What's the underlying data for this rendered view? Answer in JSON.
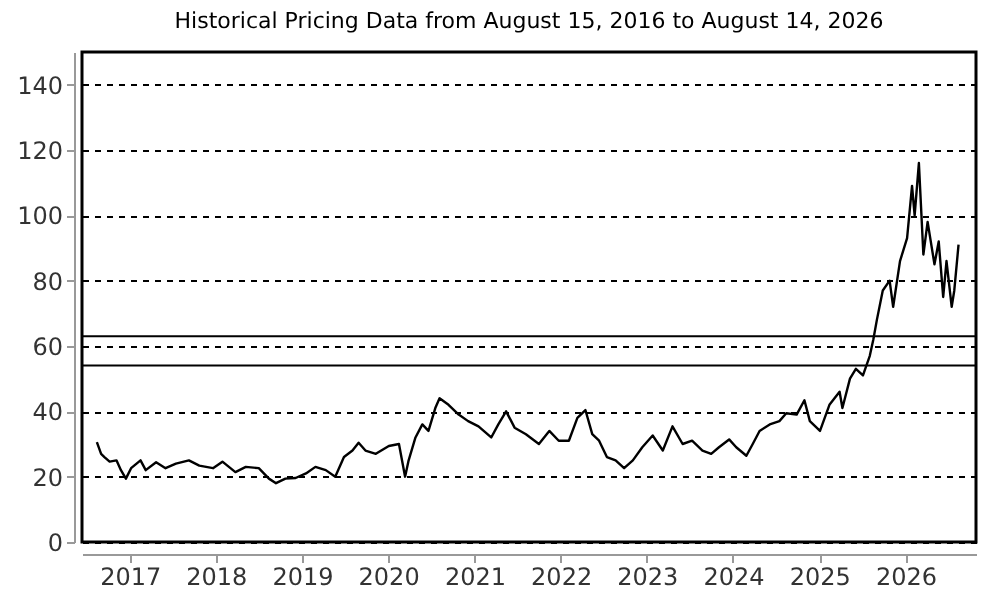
{
  "chart_data": {
    "type": "line",
    "title": "Historical Pricing Data from August 15, 2016 to August 14, 2026",
    "x": [
      "2016-08-15",
      "2016-09-02",
      "2016-09-16",
      "2016-10-08",
      "2016-11-06",
      "2016-11-25",
      "2016-12-16",
      "2017-01-07",
      "2017-02-16",
      "2017-03-10",
      "2017-04-23",
      "2017-06-02",
      "2017-07-16",
      "2017-09-09",
      "2017-10-23",
      "2017-12-20",
      "2018-01-29",
      "2018-03-25",
      "2018-05-08",
      "2018-07-02",
      "2018-08-14",
      "2018-09-13",
      "2018-10-23",
      "2018-12-05",
      "2019-01-18",
      "2019-02-27",
      "2019-04-12",
      "2019-05-22",
      "2019-06-28",
      "2019-08-03",
      "2019-08-29",
      "2019-09-27",
      "2019-11-10",
      "2020-01-04",
      "2020-02-16",
      "2020-03-13",
      "2020-03-28",
      "2020-04-26",
      "2020-05-25",
      "2020-06-20",
      "2020-07-19",
      "2020-08-06",
      "2020-09-13",
      "2020-10-26",
      "2020-12-05",
      "2021-01-18",
      "2021-03-13",
      "2021-04-12",
      "2021-05-15",
      "2021-06-20",
      "2021-08-07",
      "2021-10-01",
      "2021-11-14",
      "2021-12-24",
      "2022-02-05",
      "2022-03-13",
      "2022-04-16",
      "2022-05-15",
      "2022-06-13",
      "2022-07-16",
      "2022-08-22",
      "2022-09-27",
      "2022-11-03",
      "2022-12-13",
      "2023-01-26",
      "2023-03-10",
      "2023-04-20",
      "2023-06-02",
      "2023-07-12",
      "2023-08-25",
      "2023-10-01",
      "2023-11-03",
      "2023-12-16",
      "2024-01-15",
      "2024-02-27",
      "2024-03-25",
      "2024-04-23",
      "2024-06-05",
      "2024-07-16",
      "2024-08-14",
      "2024-09-27",
      "2024-10-30",
      "2024-11-22",
      "2025-01-04",
      "2025-02-13",
      "2025-03-28",
      "2025-04-09",
      "2025-05-11",
      "2025-06-05",
      "2025-07-05",
      "2025-08-03",
      "2025-08-18",
      "2025-09-02",
      "2025-09-27",
      "2025-10-26",
      "2025-11-10",
      "2025-12-09",
      "2026-01-08",
      "2026-01-29",
      "2026-02-09",
      "2026-02-27",
      "2026-03-18",
      "2026-04-05",
      "2026-05-04",
      "2026-05-22",
      "2026-06-10",
      "2026-06-24",
      "2026-07-16",
      "2026-07-27",
      "2026-08-14"
    ],
    "series": [
      {
        "color": "#000000",
        "values": [
          30.6,
          27,
          26,
          24.6,
          25,
          22,
          19.4,
          22.6,
          25,
          22,
          24.4,
          22.6,
          24,
          25,
          23.4,
          22.6,
          24.6,
          21.4,
          23,
          22.6,
          19.4,
          18,
          19.4,
          19.6,
          21,
          23,
          22,
          20,
          26,
          28,
          30.4,
          28,
          27,
          29.4,
          30,
          20,
          25,
          32,
          36,
          34,
          41,
          44,
          42,
          39,
          37,
          35.4,
          32,
          36,
          40,
          35,
          33,
          30,
          34,
          31,
          31,
          38,
          40.4,
          33,
          31,
          26,
          25,
          22.6,
          25,
          29,
          32.6,
          28,
          35.4,
          30,
          31,
          28,
          27,
          29,
          31.4,
          29,
          26.4,
          30,
          34,
          36,
          37,
          39.4,
          39,
          43.4,
          37,
          34,
          42,
          46,
          41,
          50,
          53,
          51,
          57,
          62,
          68,
          77,
          80,
          72,
          86,
          93,
          109,
          100,
          116,
          88,
          98,
          85,
          92,
          75,
          86,
          72,
          77,
          91
        ]
      }
    ],
    "xlim": [
      "2016-06-13",
      "2026-10-27"
    ],
    "xticks": [
      {
        "value": "2017-01-01",
        "label": "2017"
      },
      {
        "value": "2018-01-01",
        "label": "2018"
      },
      {
        "value": "2019-01-01",
        "label": "2019"
      },
      {
        "value": "2020-01-01",
        "label": "2020"
      },
      {
        "value": "2021-01-01",
        "label": "2021"
      },
      {
        "value": "2022-01-01",
        "label": "2022"
      },
      {
        "value": "2023-01-01",
        "label": "2023"
      },
      {
        "value": "2024-01-01",
        "label": "2024"
      },
      {
        "value": "2025-01-01",
        "label": "2025"
      },
      {
        "value": "2026-01-01",
        "label": "2026"
      }
    ],
    "ylim": [
      0,
      150
    ],
    "yticks": [
      0,
      20,
      40,
      60,
      80,
      100,
      120,
      140
    ],
    "grid": "y",
    "ref_lines": [
      {
        "axis": "y",
        "value": 63,
        "color": "#000000"
      },
      {
        "axis": "y",
        "value": 54,
        "color": "#000000"
      }
    ]
  }
}
